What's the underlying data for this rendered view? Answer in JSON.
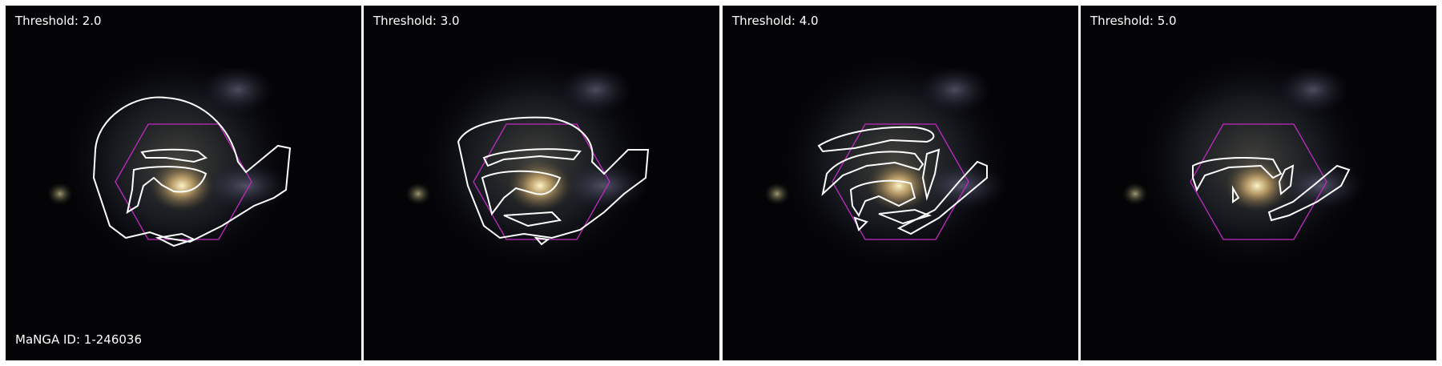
{
  "panels": [
    {
      "threshold_label": "Threshold: 2.0"
    },
    {
      "threshold_label": "Threshold: 3.0"
    },
    {
      "threshold_label": "Threshold: 4.0"
    },
    {
      "threshold_label": "Threshold: 5.0"
    }
  ],
  "manga_id_label": "MaNGA ID: 1-246036",
  "colors": {
    "contour": "#ffffff",
    "hexagon": "#c22ac2",
    "background": "#040407",
    "galaxy_core": "#f3d7a0"
  }
}
